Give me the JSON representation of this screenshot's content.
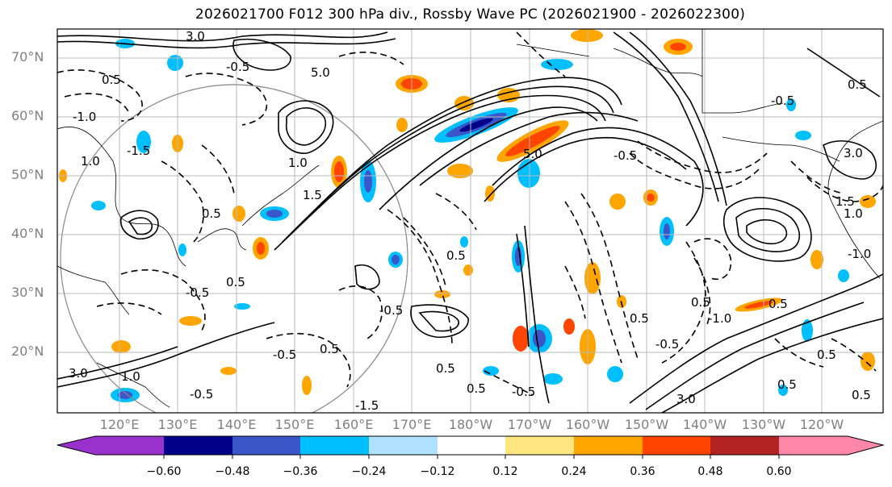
{
  "title": "2026021700 F012 300 hPa div., Rossby Wave PC (2026021900 - 2026022300)",
  "latitude_labels": [
    "70°N",
    "60°N",
    "50°N",
    "40°N",
    "30°N",
    "20°N"
  ],
  "longitude_labels": [
    "120°E",
    "130°E",
    "140°E",
    "150°E",
    "160°E",
    "170°E",
    "180°W",
    "170°W",
    "160°W",
    "150°W",
    "140°W",
    "130°W",
    "120°W"
  ],
  "colorbar": {
    "tick_labels": [
      "−0.60",
      "−0.48",
      "−0.36",
      "−0.24",
      "−0.12",
      "0.12",
      "0.24",
      "0.36",
      "0.48",
      "0.60"
    ],
    "colors": [
      "#9932CC",
      "#00008B",
      "#3A56C8",
      "#00BFFF",
      "#B0E2FF",
      "#FFFFFF",
      "#FFE680",
      "#FFA500",
      "#FF4500",
      "#B22222",
      "#FF88AA"
    ]
  },
  "map": {
    "lat_range": [
      10,
      75
    ],
    "lon_range_degrees_east": [
      112,
      253
    ],
    "gridlines": true
  },
  "contour_labels": [
    "3.0",
    "5.0",
    "0.5",
    "-0.5",
    "1.0",
    "-1.0",
    "1.5",
    "-1.5",
    "1.0",
    "0.5",
    "-0.5",
    "0.5",
    "3.0",
    "-0.5",
    "0.5",
    "-0.5",
    "1.0",
    "0.5",
    "5.0",
    "-0.5",
    "-0.5",
    "0.5",
    "3.0",
    "0.5",
    "0.5",
    "-0.5",
    "-1.5",
    "0.5",
    "-1.0",
    "1.5",
    "0.5",
    "1.0",
    "-0.5",
    "0.5",
    "3.0",
    "0.5",
    "-0.5",
    "0.5",
    "0.5",
    "-1.0"
  ]
}
